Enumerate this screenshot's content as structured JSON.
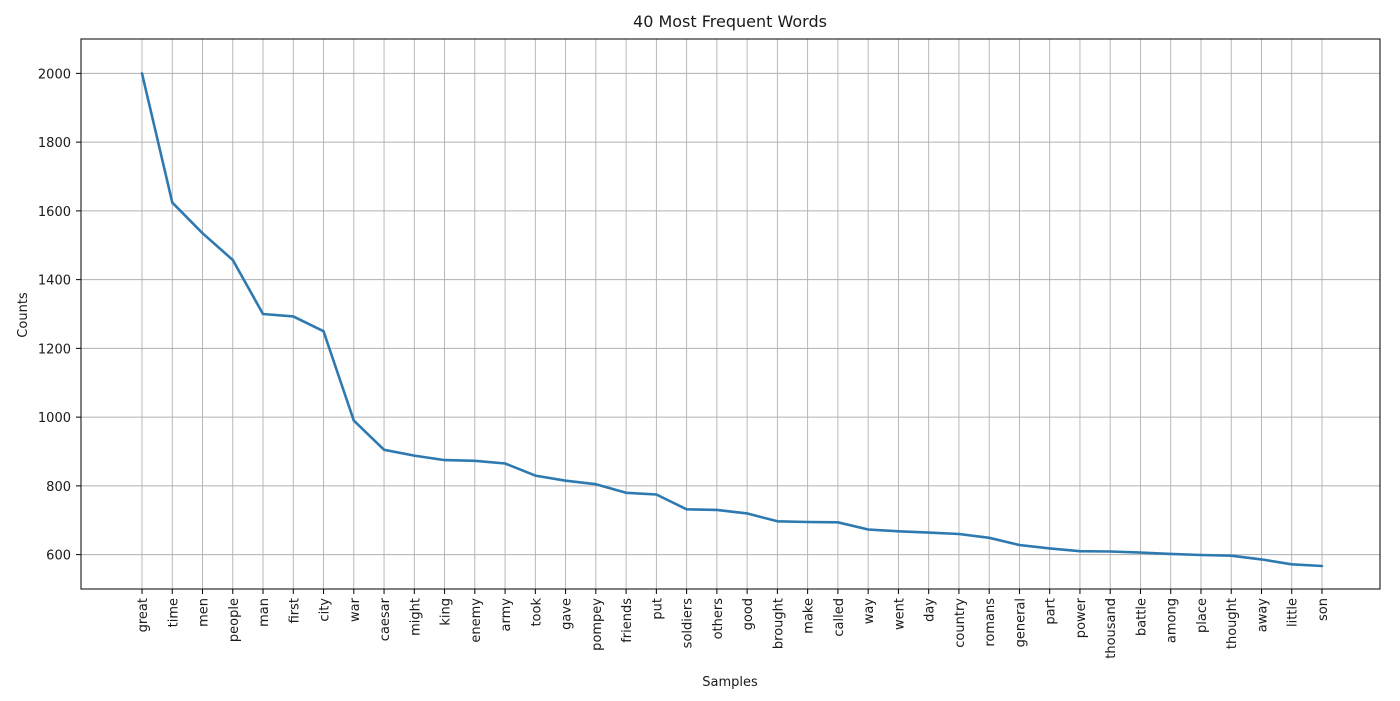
{
  "chart_data": {
    "type": "line",
    "title": "40 Most Frequent Words",
    "xlabel": "Samples",
    "ylabel": "Counts",
    "categories": [
      "great",
      "time",
      "men",
      "people",
      "man",
      "first",
      "city",
      "war",
      "caesar",
      "might",
      "king",
      "enemy",
      "army",
      "took",
      "gave",
      "pompey",
      "friends",
      "put",
      "soldiers",
      "others",
      "good",
      "brought",
      "make",
      "called",
      "way",
      "went",
      "day",
      "country",
      "romans",
      "general",
      "part",
      "power",
      "thousand",
      "battle",
      "among",
      "place",
      "thought",
      "away",
      "little",
      "son"
    ],
    "series": [
      {
        "values": [
          2000,
          1624,
          1535,
          1457,
          1300,
          1293,
          1250,
          990,
          905,
          888,
          875,
          873,
          865,
          830,
          815,
          805,
          780,
          775,
          732,
          730,
          720,
          697,
          695,
          694,
          673,
          668,
          664,
          660,
          649,
          628,
          618,
          610,
          609,
          606,
          602,
          599,
          597,
          586,
          572,
          567
        ]
      }
    ],
    "ylim": [
      500,
      2100
    ],
    "yticks": [
      600,
      800,
      1000,
      1200,
      1400,
      1600,
      1800,
      2000
    ],
    "grid": true,
    "color": "#2e7ab0"
  }
}
